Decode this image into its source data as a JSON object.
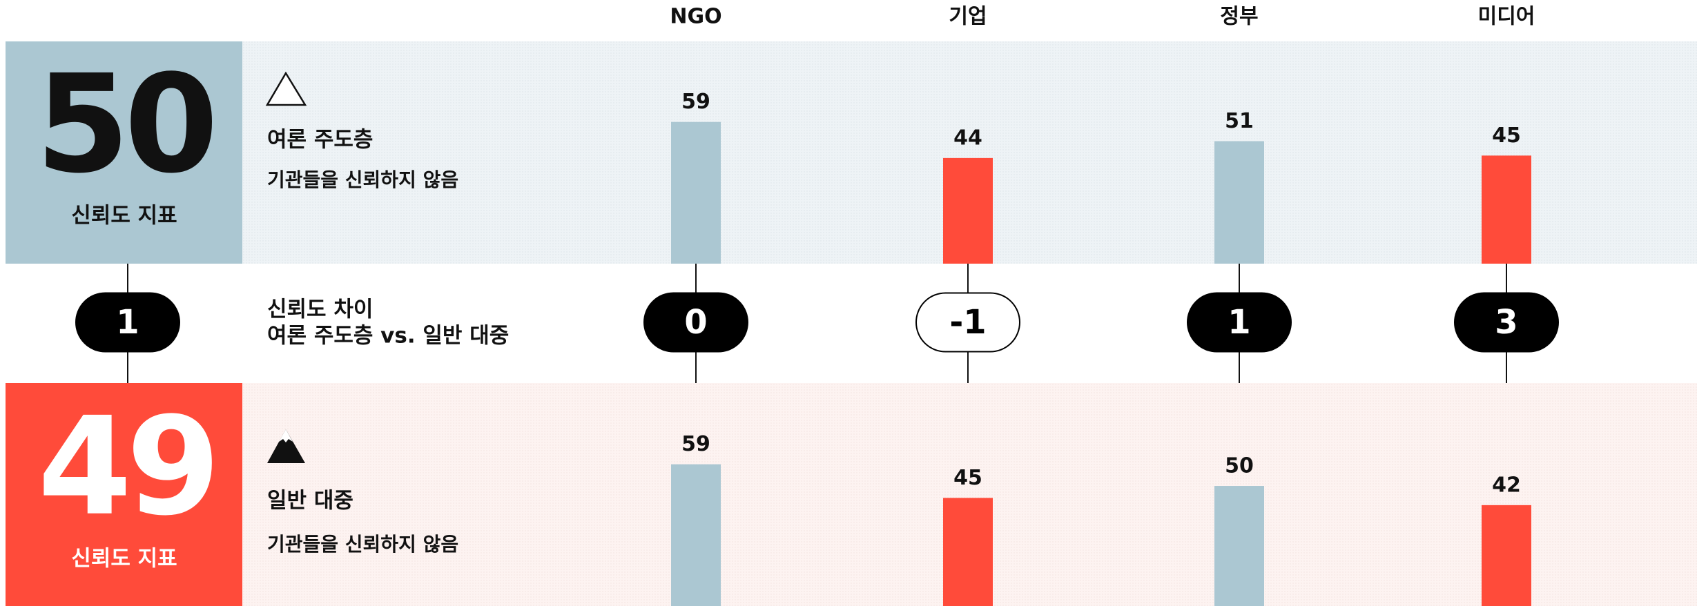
{
  "categories": [
    "NGO",
    "기업",
    "정부",
    "미디어"
  ],
  "informed_public": {
    "index": 50,
    "index_label": "신뢰도 지표",
    "title": "여론 주도층",
    "subtitle": "기관들을 신뢰하지 않음",
    "values": [
      59,
      44,
      51,
      45
    ]
  },
  "trust_gap": {
    "value": 1,
    "label_lines": [
      "신뢰도 차이",
      "여론 주도층 vs. 일반 대중"
    ],
    "values": [
      0,
      -1,
      1,
      3
    ]
  },
  "general_population": {
    "index": 49,
    "index_label": "신뢰도 지표",
    "title": "일반 대중",
    "subtitle": "기관들을 신뢰하지 않음",
    "values": [
      59,
      45,
      50,
      42
    ]
  }
}
